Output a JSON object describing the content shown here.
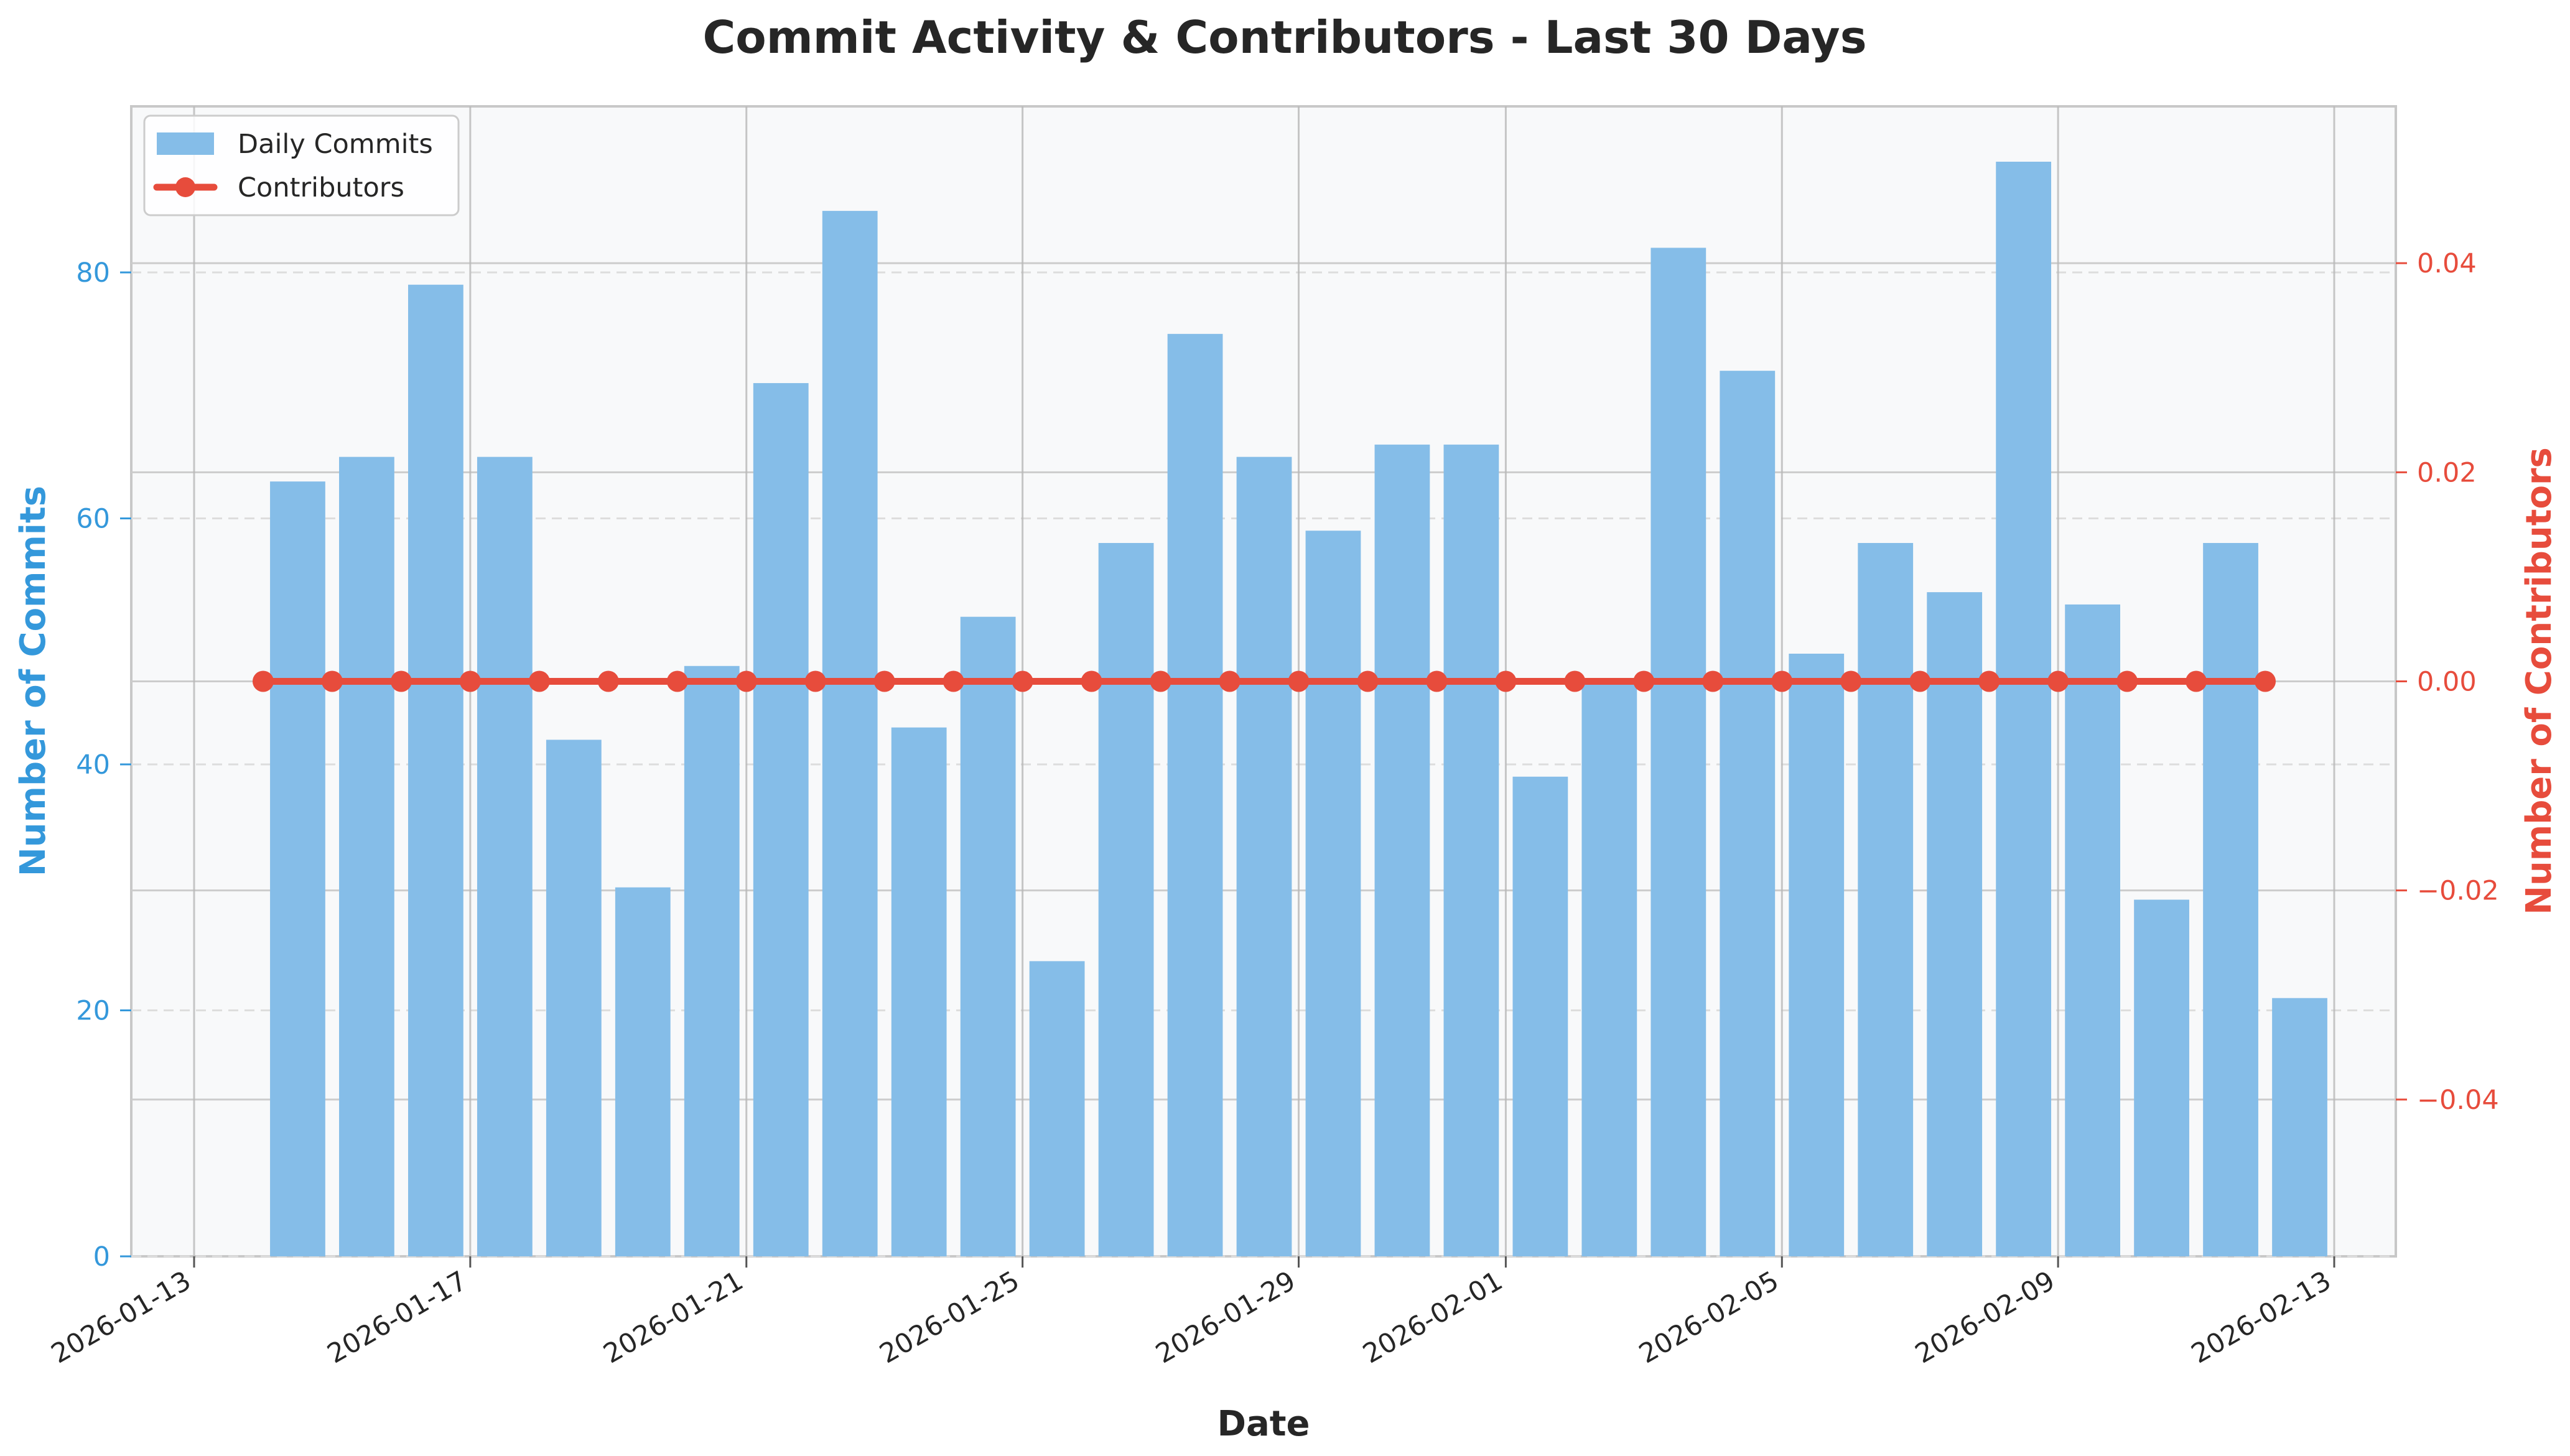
{
  "chart_data": {
    "type": "bar",
    "title": "Commit Activity & Contributors - Last 30 Days",
    "xlabel": "Date",
    "ylabel": "Number of Commits",
    "y2label": "Number of Contributors",
    "categories": [
      "2026-01-14",
      "2026-01-15",
      "2026-01-16",
      "2026-01-17",
      "2026-01-18",
      "2026-01-19",
      "2026-01-20",
      "2026-01-21",
      "2026-01-22",
      "2026-01-23",
      "2026-01-24",
      "2026-01-25",
      "2026-01-26",
      "2026-01-27",
      "2026-01-28",
      "2026-01-29",
      "2026-01-30",
      "2026-01-31",
      "2026-02-01",
      "2026-02-02",
      "2026-02-03",
      "2026-02-04",
      "2026-02-05",
      "2026-02-06",
      "2026-02-07",
      "2026-02-08",
      "2026-02-09",
      "2026-02-10",
      "2026-02-11",
      "2026-02-12"
    ],
    "series": [
      {
        "name": "Daily Commits",
        "type": "bar",
        "axis": "left",
        "color": "#85bde8",
        "values": [
          63,
          65,
          79,
          65,
          42,
          30,
          48,
          71,
          85,
          43,
          52,
          24,
          58,
          75,
          65,
          59,
          66,
          66,
          39,
          47,
          82,
          72,
          49,
          58,
          54,
          89,
          53,
          29,
          58,
          21
        ]
      },
      {
        "name": "Contributors",
        "type": "line",
        "axis": "right",
        "color": "#e74c3c",
        "values": [
          0,
          0,
          0,
          0,
          0,
          0,
          0,
          0,
          0,
          0,
          0,
          0,
          0,
          0,
          0,
          0,
          0,
          0,
          0,
          0,
          0,
          0,
          0,
          0,
          0,
          0,
          0,
          0,
          0,
          0
        ]
      }
    ],
    "ylim": [
      0,
      93.5
    ],
    "y2lim": [
      -0.055,
      0.055
    ],
    "yticks": [
      "0",
      "20",
      "40",
      "60",
      "80"
    ],
    "y2ticks": [
      "−0.04",
      "−0.02",
      "0.00",
      "0.02",
      "0.04"
    ],
    "xticks": [
      "2026-01-13",
      "2026-01-17",
      "2026-01-21",
      "2026-01-25",
      "2026-01-29",
      "2026-02-01",
      "2026-02-05",
      "2026-02-09",
      "2026-02-13"
    ],
    "left_color": "#3498db",
    "right_color": "#e74c3c",
    "legend": [
      "Daily Commits",
      "Contributors"
    ],
    "legend_position": "top-left",
    "grid": true
  }
}
